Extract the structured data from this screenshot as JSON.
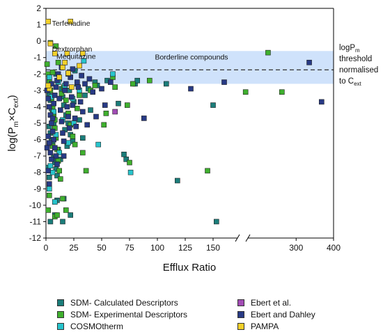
{
  "chart_data": {
    "type": "scatter",
    "xlabel": "Efflux Ratio",
    "ylabel_main": "log(P",
    "ylabel_sub1": "m",
    "ylabel_mid": "×C",
    "ylabel_sub2": "ext",
    "ylabel_end": ")",
    "ylim": [
      -12,
      2
    ],
    "x_segments": [
      {
        "range": [
          0,
          160
        ],
        "ticks": [
          0,
          25,
          50,
          75,
          100,
          125,
          150
        ]
      },
      {
        "range": [
          160,
          400
        ],
        "ticks": [
          300,
          400
        ]
      }
    ],
    "yticks": [
      2,
      1,
      0,
      -1,
      -2,
      -3,
      -4,
      -5,
      -6,
      -7,
      -8,
      -9,
      -10,
      -11,
      -12
    ],
    "threshold": {
      "y": -1.75,
      "band": [
        -2.6,
        -0.6
      ],
      "band_label": "Borderline compounds",
      "label_lines": [
        "logP",
        "threshold",
        "normalised",
        "to C"
      ],
      "label_sub_m": "m",
      "label_sub_ext": "ext"
    },
    "annotations": [
      {
        "text": "Terfenadine",
        "x": 1,
        "y": 1.1
      },
      {
        "text": "Dextrorphan",
        "x": 1,
        "y": -0.45
      },
      {
        "text": "Mequitazine",
        "x": 5,
        "y": -0.9
      }
    ],
    "series": [
      {
        "name": "SDM- Calculated Descriptors",
        "color": "#1b7d7a",
        "points": [
          [
            2,
            -2.8
          ],
          [
            3,
            -3.2
          ],
          [
            4,
            -3.6
          ],
          [
            5,
            -4.1
          ],
          [
            6,
            -4.4
          ],
          [
            3,
            -5.2
          ],
          [
            4,
            -5.6
          ],
          [
            5,
            -6.0
          ],
          [
            6,
            -6.3
          ],
          [
            7,
            -7.1
          ],
          [
            8,
            -7.4
          ],
          [
            9,
            -7.8
          ],
          [
            10,
            -8.2
          ],
          [
            3,
            -8.3
          ],
          [
            2,
            -7.7
          ],
          [
            12,
            -2.3
          ],
          [
            14,
            -2.9
          ],
          [
            15,
            -3.4
          ],
          [
            16,
            -3.9
          ],
          [
            18,
            -4.5
          ],
          [
            20,
            -5.0
          ],
          [
            22,
            -5.7
          ],
          [
            24,
            -6.1
          ],
          [
            11,
            -6.6
          ],
          [
            13,
            -7.2
          ],
          [
            17,
            -5.4
          ],
          [
            19,
            -6.4
          ],
          [
            21,
            -3.0
          ],
          [
            25,
            -3.7
          ],
          [
            28,
            -2.6
          ],
          [
            30,
            -4.8
          ],
          [
            32,
            -2.1
          ],
          [
            35,
            -3.3
          ],
          [
            38,
            -2.9
          ],
          [
            40,
            -4.2
          ],
          [
            44,
            -2.5
          ],
          [
            46,
            -2.7
          ],
          [
            55,
            -2.4
          ],
          [
            65,
            -3.8
          ],
          [
            70,
            -6.9
          ],
          [
            72,
            -7.2
          ],
          [
            80,
            -2.6
          ],
          [
            82,
            -2.4
          ],
          [
            108,
            -2.6
          ],
          [
            118,
            -8.5
          ],
          [
            150,
            -3.9
          ],
          [
            153,
            -11.0
          ],
          [
            8,
            -10.6
          ],
          [
            10,
            -9.7
          ],
          [
            16,
            -9.6
          ],
          [
            22,
            -10.6
          ],
          [
            4,
            -11.0
          ],
          [
            15,
            -11.0
          ],
          [
            7,
            -5.0
          ],
          [
            9,
            -2.0
          ],
          [
            26,
            -1.8
          ],
          [
            33,
            -5.9
          ]
        ]
      },
      {
        "name": "SDM- Experimental Descriptors",
        "color": "#3fb02e",
        "points": [
          [
            1,
            -1.4
          ],
          [
            2,
            -2.0
          ],
          [
            3,
            -2.5
          ],
          [
            4,
            -3.0
          ],
          [
            5,
            -3.5
          ],
          [
            6,
            -4.0
          ],
          [
            7,
            -4.6
          ],
          [
            8,
            -5.3
          ],
          [
            9,
            -5.9
          ],
          [
            10,
            -6.6
          ],
          [
            11,
            -7.3
          ],
          [
            12,
            -7.9
          ],
          [
            13,
            -8.4
          ],
          [
            6,
            -6.4
          ],
          [
            8,
            -4.8
          ],
          [
            14,
            -3.2
          ],
          [
            16,
            -2.8
          ],
          [
            18,
            -3.6
          ],
          [
            20,
            -4.4
          ],
          [
            22,
            -5.1
          ],
          [
            24,
            -5.8
          ],
          [
            26,
            -6.3
          ],
          [
            28,
            -4.1
          ],
          [
            30,
            -3.3
          ],
          [
            33,
            -6.8
          ],
          [
            36,
            -7.9
          ],
          [
            40,
            -3.0
          ],
          [
            44,
            -2.7
          ],
          [
            52,
            -5.1
          ],
          [
            54,
            -4.4
          ],
          [
            60,
            -2.2
          ],
          [
            62,
            -2.8
          ],
          [
            73,
            -3.9
          ],
          [
            75,
            -7.4
          ],
          [
            78,
            -2.6
          ],
          [
            93,
            -2.4
          ],
          [
            145,
            -7.9
          ],
          [
            165,
            -3.1
          ],
          [
            225,
            -0.7
          ],
          [
            262,
            -3.1
          ],
          [
            2,
            -10.3
          ],
          [
            8,
            -10.7
          ],
          [
            10,
            -10.6
          ],
          [
            15,
            -9.6
          ],
          [
            18,
            -10.3
          ],
          [
            3,
            -9.4
          ],
          [
            6,
            -1.9
          ],
          [
            11,
            -1.3
          ],
          [
            4,
            -0.1
          ],
          [
            9,
            -0.3
          ]
        ]
      },
      {
        "name": "COSMOtherm",
        "color": "#27c4cc",
        "points": [
          [
            3,
            -2.2
          ],
          [
            5,
            -3.4
          ],
          [
            7,
            -4.3
          ],
          [
            9,
            -5.7
          ],
          [
            12,
            -6.8
          ],
          [
            4,
            -7.6
          ],
          [
            6,
            -8.0
          ],
          [
            8,
            -9.8
          ],
          [
            3,
            -9.0
          ],
          [
            15,
            -4.8
          ],
          [
            17,
            -2.7
          ],
          [
            20,
            -6.2
          ],
          [
            24,
            -3.5
          ],
          [
            30,
            -3.0
          ],
          [
            34,
            -1.2
          ],
          [
            47,
            -6.3
          ],
          [
            60,
            -2.0
          ],
          [
            76,
            -8.0
          ],
          [
            25,
            -5.0
          ],
          [
            11,
            -2.5
          ]
        ]
      },
      {
        "name": "Ebert et al.",
        "color": "#a24cb5",
        "points": [
          [
            62,
            -4.3
          ]
        ]
      },
      {
        "name": "Ebert and Dahley",
        "color": "#283a85",
        "points": [
          [
            1,
            -3.0
          ],
          [
            2,
            -3.5
          ],
          [
            3,
            -4.0
          ],
          [
            4,
            -4.5
          ],
          [
            5,
            -5.0
          ],
          [
            6,
            -5.5
          ],
          [
            7,
            -6.0
          ],
          [
            8,
            -6.5
          ],
          [
            9,
            -7.0
          ],
          [
            10,
            -7.5
          ],
          [
            2,
            -5.8
          ],
          [
            3,
            -6.2
          ],
          [
            4,
            -6.8
          ],
          [
            5,
            -7.2
          ],
          [
            6,
            -4.7
          ],
          [
            7,
            -3.8
          ],
          [
            8,
            -3.3
          ],
          [
            9,
            -2.8
          ],
          [
            10,
            -2.4
          ],
          [
            11,
            -2.0
          ],
          [
            12,
            -3.5
          ],
          [
            13,
            -4.2
          ],
          [
            14,
            -4.9
          ],
          [
            15,
            -5.6
          ],
          [
            16,
            -6.1
          ],
          [
            17,
            -3.0
          ],
          [
            18,
            -2.6
          ],
          [
            19,
            -4.0
          ],
          [
            20,
            -4.6
          ],
          [
            21,
            -5.3
          ],
          [
            22,
            -2.2
          ],
          [
            23,
            -3.4
          ],
          [
            24,
            -3.9
          ],
          [
            26,
            -4.7
          ],
          [
            27,
            -5.2
          ],
          [
            28,
            -2.5
          ],
          [
            29,
            -2.8
          ],
          [
            31,
            -3.7
          ],
          [
            33,
            -4.3
          ],
          [
            35,
            -2.6
          ],
          [
            37,
            -5.1
          ],
          [
            39,
            -2.3
          ],
          [
            42,
            -3.1
          ],
          [
            45,
            -4.6
          ],
          [
            50,
            -2.9
          ],
          [
            53,
            -3.9
          ],
          [
            58,
            -2.5
          ],
          [
            88,
            -4.7
          ],
          [
            130,
            -2.9
          ],
          [
            160,
            -2.5
          ],
          [
            335,
            -1.3
          ],
          [
            368,
            -3.7
          ],
          [
            1,
            -6.5
          ],
          [
            2,
            -7.9
          ],
          [
            3,
            -8.7
          ],
          [
            5,
            -2.6
          ],
          [
            14,
            -1.6
          ],
          [
            16,
            -7.0
          ],
          [
            20,
            -2.0
          ],
          [
            24,
            -1.7
          ],
          [
            32,
            -2.1
          ]
        ]
      },
      {
        "name": "PAMPA",
        "color": "#f2d02a",
        "points": [
          [
            2,
            1.2
          ],
          [
            4,
            -0.15
          ],
          [
            8,
            -0.75
          ],
          [
            12,
            -2.2
          ],
          [
            15,
            -1.6
          ],
          [
            19,
            -0.75
          ],
          [
            20,
            -1.95
          ],
          [
            22,
            1.2
          ],
          [
            23,
            -2.8
          ],
          [
            30,
            -1.5
          ],
          [
            33,
            -0.75
          ],
          [
            3,
            -2.9
          ],
          [
            2,
            -2.7
          ],
          [
            17,
            -1.3
          ]
        ]
      }
    ]
  },
  "legend": [
    {
      "label": "SDM- Calculated Descriptors",
      "color": "#1b7d7a"
    },
    {
      "label": "SDM- Experimental Descriptors",
      "color": "#3fb02e"
    },
    {
      "label": "COSMOtherm",
      "color": "#27c4cc"
    },
    {
      "label": "Ebert et al.",
      "color": "#a24cb5"
    },
    {
      "label": "Ebert and Dahley",
      "color": "#283a85"
    },
    {
      "label": "PAMPA",
      "color": "#f2d02a"
    }
  ]
}
